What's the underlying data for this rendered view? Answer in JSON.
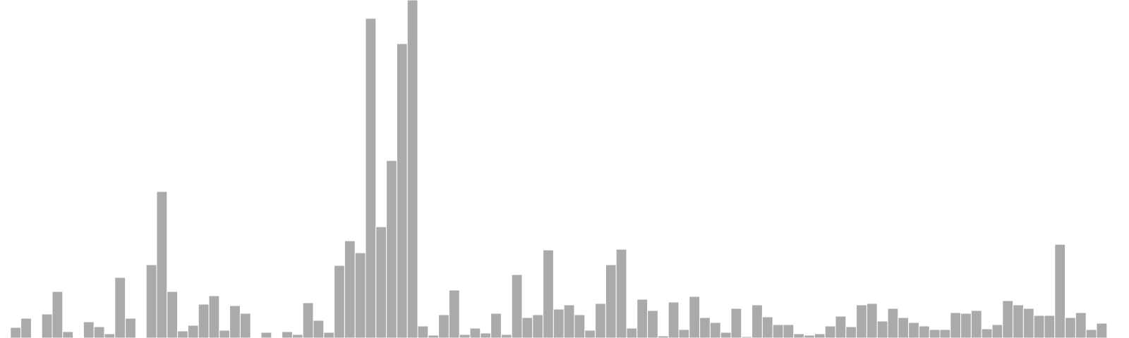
{
  "chart_data": {
    "type": "bar",
    "title": "",
    "xlabel": "",
    "ylabel": "",
    "ylim": [
      0,
      480
    ],
    "grid": false,
    "legend": "none",
    "bar_color": "#aaaaaa",
    "bar_edge_color": "#ffffff",
    "series": [
      {
        "values": [
          0,
          15,
          28,
          0,
          34,
          66,
          9,
          0,
          23,
          16,
          6,
          86,
          28,
          0,
          104,
          208,
          66,
          10,
          18,
          48,
          60,
          11,
          46,
          35,
          0,
          8,
          0,
          9,
          5,
          50,
          25,
          8,
          103,
          138,
          121,
          454,
          158,
          252,
          418,
          480,
          17,
          4,
          33,
          68,
          5,
          14,
          7,
          35,
          5,
          90,
          29,
          33,
          125,
          41,
          47,
          33,
          11,
          49,
          104,
          126,
          14,
          55,
          39,
          3,
          51,
          12,
          59,
          29,
          22,
          8,
          42,
          2,
          47,
          30,
          19,
          19,
          6,
          4,
          6,
          17,
          31,
          16,
          47,
          49,
          24,
          42,
          29,
          22,
          17,
          12,
          12,
          36,
          35,
          39,
          13,
          19,
          53,
          47,
          42,
          32,
          32,
          133,
          29,
          36,
          12,
          21
        ]
      }
    ]
  }
}
